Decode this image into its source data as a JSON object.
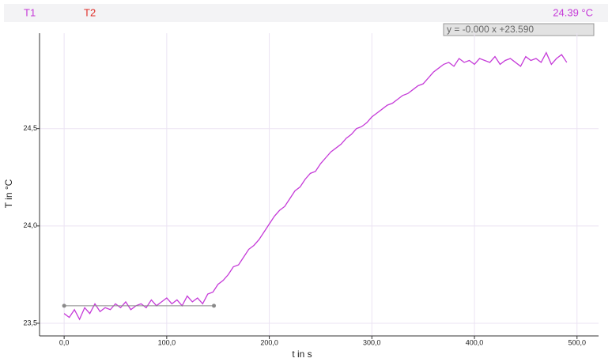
{
  "chart_data": {
    "type": "line",
    "legend_items": [
      {
        "name": "T1",
        "color": "#c53ad8"
      },
      {
        "name": "T2",
        "color": "#e0302a"
      }
    ],
    "readout": "24.39 °C",
    "fit_label": "y = -0.000 x +23.590",
    "fit_line": {
      "color": "#8a8a8a",
      "x": [
        0,
        146
      ],
      "values": [
        23.59,
        23.59
      ]
    },
    "x_label": "t in s",
    "y_label": "T in °C",
    "x": [
      0,
      5,
      10,
      15,
      20,
      25,
      30,
      35,
      40,
      45,
      50,
      55,
      60,
      65,
      70,
      75,
      80,
      85,
      90,
      95,
      100,
      105,
      110,
      115,
      120,
      125,
      130,
      135,
      140,
      145,
      150,
      155,
      160,
      165,
      170,
      175,
      180,
      185,
      190,
      195,
      200,
      205,
      210,
      215,
      220,
      225,
      230,
      235,
      240,
      245,
      250,
      255,
      260,
      265,
      270,
      275,
      280,
      285,
      290,
      295,
      300,
      305,
      310,
      315,
      320,
      325,
      330,
      335,
      340,
      345,
      350,
      355,
      360,
      365,
      370,
      375,
      380,
      385,
      390,
      395,
      400,
      405,
      410,
      415,
      420,
      425,
      430,
      435,
      440,
      445,
      450,
      455,
      460,
      465,
      470,
      475,
      480,
      485,
      490
    ],
    "series": [
      {
        "name": "T1",
        "color": "#c53ad8",
        "values": [
          23.55,
          23.53,
          23.57,
          23.52,
          23.58,
          23.55,
          23.6,
          23.56,
          23.58,
          23.57,
          23.6,
          23.58,
          23.61,
          23.57,
          23.59,
          23.6,
          23.58,
          23.62,
          23.59,
          23.61,
          23.63,
          23.6,
          23.62,
          23.59,
          23.64,
          23.61,
          23.63,
          23.6,
          23.65,
          23.66,
          23.7,
          23.72,
          23.75,
          23.79,
          23.8,
          23.84,
          23.88,
          23.9,
          23.93,
          23.97,
          24.01,
          24.05,
          24.08,
          24.1,
          24.14,
          24.18,
          24.2,
          24.24,
          24.27,
          24.28,
          24.32,
          24.35,
          24.38,
          24.4,
          24.42,
          24.45,
          24.47,
          24.5,
          24.51,
          24.53,
          24.56,
          24.58,
          24.6,
          24.62,
          24.63,
          24.65,
          24.67,
          24.68,
          24.7,
          24.72,
          24.73,
          24.76,
          24.79,
          24.81,
          24.83,
          24.84,
          24.82,
          24.86,
          24.84,
          24.85,
          24.83,
          24.86,
          24.85,
          24.84,
          24.87,
          24.83,
          24.85,
          24.86,
          24.84,
          24.82,
          24.87,
          24.85,
          24.86,
          24.84,
          24.89,
          24.83,
          24.86,
          24.88,
          24.84
        ]
      }
    ],
    "xlim": [
      -24,
      521
    ],
    "ylim": [
      23.435,
      24.99
    ],
    "xticks": [
      {
        "value": 0,
        "label": "0,0"
      },
      {
        "value": 100,
        "label": "100,0"
      },
      {
        "value": 200,
        "label": "200,0"
      },
      {
        "value": 300,
        "label": "300,0"
      },
      {
        "value": 400,
        "label": "400,0"
      },
      {
        "value": 500,
        "label": "500,0"
      }
    ],
    "yticks": [
      {
        "value": 23.5,
        "label": "23,5"
      },
      {
        "value": 24,
        "label": "24,0"
      },
      {
        "value": 24.5,
        "label": "24,5"
      }
    ],
    "grid": true
  }
}
